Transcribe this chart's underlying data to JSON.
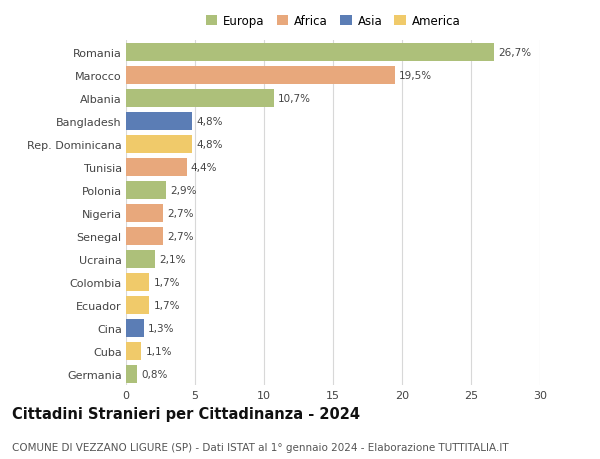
{
  "countries": [
    "Romania",
    "Marocco",
    "Albania",
    "Bangladesh",
    "Rep. Dominicana",
    "Tunisia",
    "Polonia",
    "Nigeria",
    "Senegal",
    "Ucraina",
    "Colombia",
    "Ecuador",
    "Cina",
    "Cuba",
    "Germania"
  ],
  "values": [
    26.7,
    19.5,
    10.7,
    4.8,
    4.8,
    4.4,
    2.9,
    2.7,
    2.7,
    2.1,
    1.7,
    1.7,
    1.3,
    1.1,
    0.8
  ],
  "labels": [
    "26,7%",
    "19,5%",
    "10,7%",
    "4,8%",
    "4,8%",
    "4,4%",
    "2,9%",
    "2,7%",
    "2,7%",
    "2,1%",
    "1,7%",
    "1,7%",
    "1,3%",
    "1,1%",
    "0,8%"
  ],
  "continents": [
    "Europa",
    "Africa",
    "Europa",
    "Asia",
    "America",
    "Africa",
    "Europa",
    "Africa",
    "Africa",
    "Europa",
    "America",
    "America",
    "Asia",
    "America",
    "Europa"
  ],
  "continent_colors": {
    "Europa": "#adc07a",
    "Africa": "#e8a87c",
    "Asia": "#5b7db5",
    "America": "#f0ca6a"
  },
  "legend_order": [
    "Europa",
    "Africa",
    "Asia",
    "America"
  ],
  "xlim": [
    0,
    30
  ],
  "xticks": [
    0,
    5,
    10,
    15,
    20,
    25,
    30
  ],
  "title": "Cittadini Stranieri per Cittadinanza - 2024",
  "subtitle": "COMUNE DI VEZZANO LIGURE (SP) - Dati ISTAT al 1° gennaio 2024 - Elaborazione TUTTITALIA.IT",
  "title_fontsize": 10.5,
  "subtitle_fontsize": 7.5,
  "background_color": "#ffffff",
  "grid_color": "#d8d8d8",
  "bar_height": 0.75,
  "bar_alpha": 1.0
}
